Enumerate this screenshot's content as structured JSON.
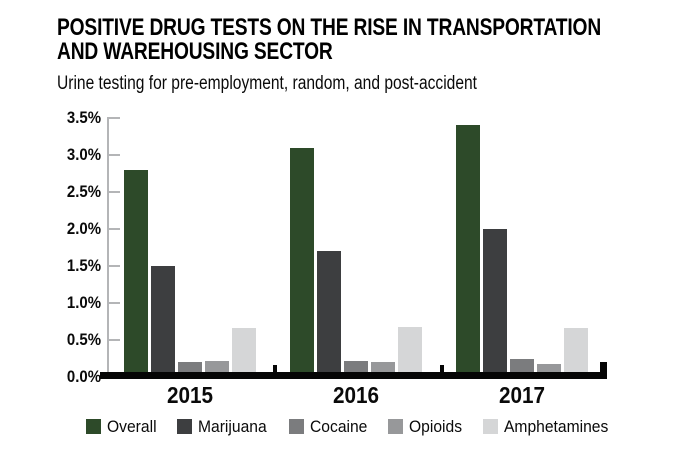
{
  "header": {
    "title_line1": "POSITIVE DRUG TESTS ON THE RISE IN TRANSPORTATION",
    "title_line2": "AND WAREHOUSING SECTOR",
    "subtitle": "Urine testing for pre-employment, random, and post-accident"
  },
  "chart_data": {
    "type": "bar",
    "title": "Positive drug tests on the rise in transportation and warehousing sector",
    "subtitle": "Urine testing for pre-employment, random, and post-accident",
    "categories": [
      "2015",
      "2016",
      "2017"
    ],
    "series": [
      {
        "name": "Overall",
        "color": "#2d4a29",
        "values": [
          2.8,
          3.1,
          3.4
        ]
      },
      {
        "name": "Marijuana",
        "color": "#3d3e40",
        "values": [
          1.5,
          1.7,
          2.0
        ]
      },
      {
        "name": "Cocaine",
        "color": "#7b7c7e",
        "values": [
          0.2,
          0.22,
          0.25
        ]
      },
      {
        "name": "Opioids",
        "color": "#97989a",
        "values": [
          0.22,
          0.2,
          0.17
        ]
      },
      {
        "name": "Amphetamines",
        "color": "#d5d6d7",
        "values": [
          0.66,
          0.67,
          0.66
        ]
      }
    ],
    "ylabel": "",
    "xlabel": "",
    "ylim": [
      0,
      3.5
    ],
    "y_tick_step": 0.5,
    "y_tick_labels": [
      "0.0%",
      "0.5%",
      "1.0%",
      "1.5%",
      "2.0%",
      "2.5%",
      "3.0%",
      "3.5%"
    ],
    "unit": "%",
    "grid": false,
    "legend_position": "bottom"
  }
}
